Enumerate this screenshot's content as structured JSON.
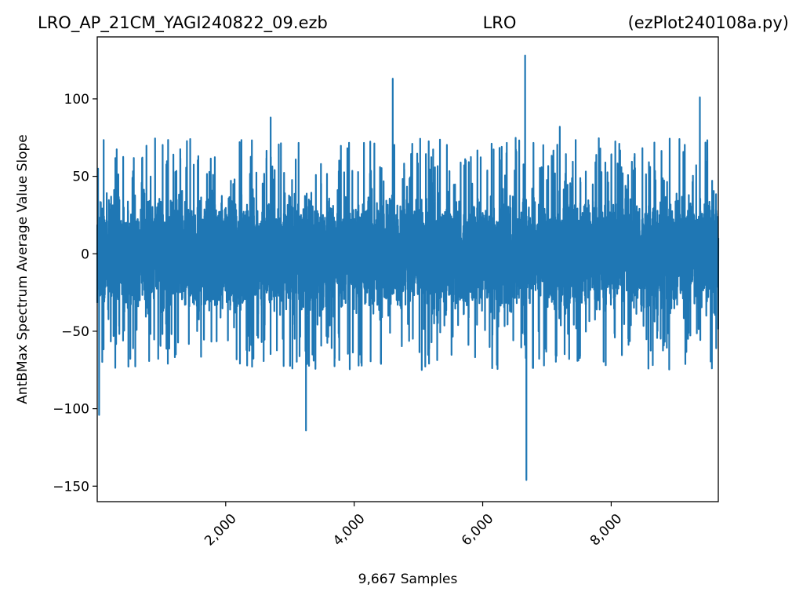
{
  "header": {
    "title_left": "LRO_AP_21CM_YAGI240822_09.ezb",
    "title_center": "LRO",
    "title_right": "(ezPlot240108a.py)"
  },
  "chart_data": {
    "type": "line",
    "xlabel": "9,667 Samples",
    "ylabel": "AntBMax Spectrum Average Value Slope",
    "xlim": [
      1,
      9667
    ],
    "ylim": [
      -160,
      140
    ],
    "x_ticks": [
      {
        "value": 2000,
        "label": "2,000"
      },
      {
        "value": 4000,
        "label": "4,000"
      },
      {
        "value": 6000,
        "label": "6,000"
      },
      {
        "value": 8000,
        "label": "8,000"
      }
    ],
    "y_ticks": [
      {
        "value": 100,
        "label": "100"
      },
      {
        "value": 50,
        "label": "50"
      },
      {
        "value": 0,
        "label": "0"
      },
      {
        "value": -50,
        "label": "−50"
      },
      {
        "value": -100,
        "label": "−100"
      },
      {
        "value": -150,
        "label": "−150"
      }
    ],
    "grid": false,
    "line_color": "#1f77b4",
    "series": [
      {
        "n_samples": 9667,
        "typical_range": [
          -45,
          45
        ],
        "notable_points": [
          {
            "x": 4600,
            "y": 113
          },
          {
            "x": 6660,
            "y": 128
          },
          {
            "x": 6680,
            "y": -146
          },
          {
            "x": 3250,
            "y": -114
          },
          {
            "x": 30,
            "y": -104
          },
          {
            "x": 9380,
            "y": 101
          },
          {
            "x": 7200,
            "y": 82
          },
          {
            "x": 2700,
            "y": 88
          }
        ]
      }
    ]
  }
}
